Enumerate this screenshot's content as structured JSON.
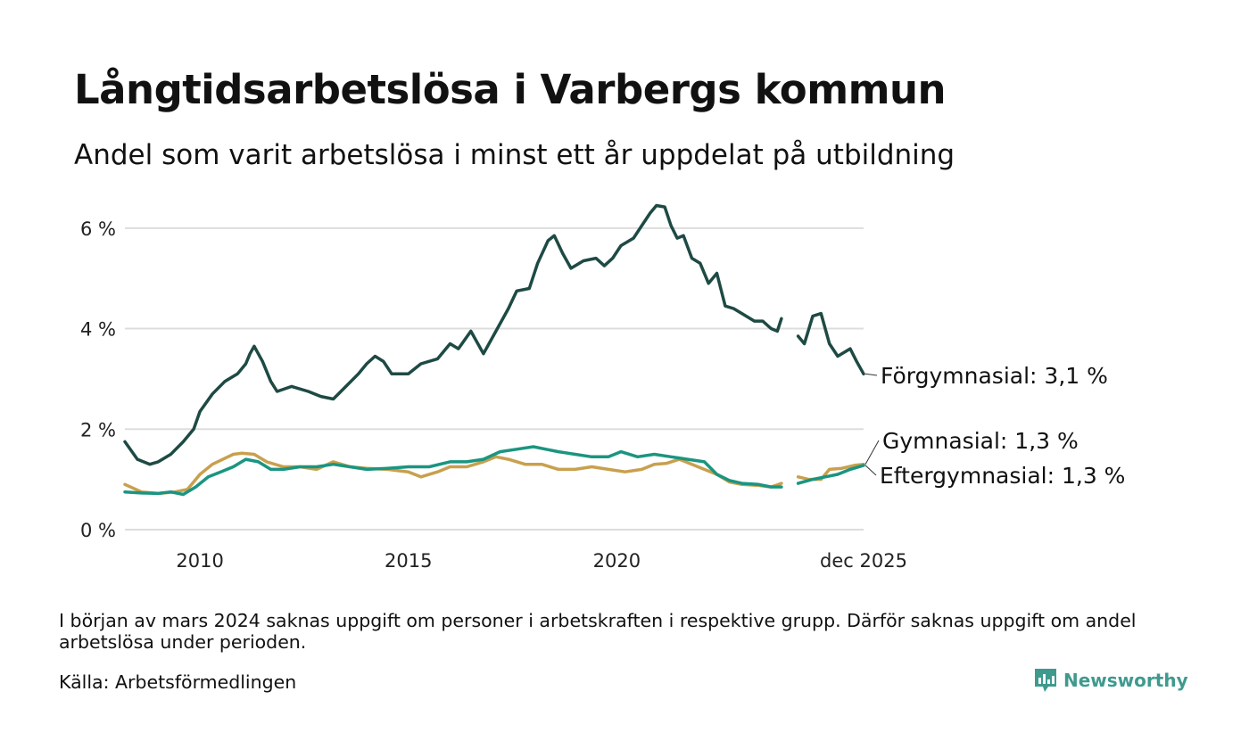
{
  "title": "Långtidsarbetslösa i Varbergs kommun",
  "subtitle": "Andel som varit arbetslösa i minst ett år uppdelat på utbildning",
  "footnote": "I början av mars 2024 saknas uppgift om personer i arbetskraften i respektive grupp. Därför saknas uppgift om andel arbetslösa under perioden.",
  "source": "Källa: Arbetsförmedlingen",
  "brand": "Newsworthy",
  "colors": {
    "forgymnasial": "#1e4a44",
    "gymnasial": "#c8a04e",
    "eftergymnasial": "#1a9580",
    "grid": "#dddddd",
    "logo": "#3f9a8e"
  },
  "chart_data": {
    "type": "line",
    "xlabel": "",
    "ylabel": "",
    "xlim": [
      2008.2,
      2025.92
    ],
    "ylim": [
      0,
      6.6
    ],
    "y_ticks": [
      0,
      2,
      4,
      6
    ],
    "y_tick_labels": [
      "0 %",
      "2 %",
      "4 %",
      "6 %"
    ],
    "x_ticks": [
      2010,
      2015,
      2020,
      2025.92
    ],
    "x_tick_labels": [
      "2010",
      "2015",
      "2020",
      "dec 2025"
    ],
    "gap": [
      2023.95,
      2024.35
    ],
    "series": [
      {
        "name": "Förgymnasial",
        "label": "Förgymnasial: 3,1 %",
        "color_key": "forgymnasial",
        "points": [
          [
            2008.2,
            1.75
          ],
          [
            2008.5,
            1.4
          ],
          [
            2008.8,
            1.3
          ],
          [
            2009.0,
            1.35
          ],
          [
            2009.3,
            1.5
          ],
          [
            2009.6,
            1.75
          ],
          [
            2009.85,
            2.0
          ],
          [
            2010.0,
            2.35
          ],
          [
            2010.3,
            2.7
          ],
          [
            2010.6,
            2.95
          ],
          [
            2010.9,
            3.1
          ],
          [
            2011.1,
            3.3
          ],
          [
            2011.2,
            3.5
          ],
          [
            2011.3,
            3.65
          ],
          [
            2011.5,
            3.35
          ],
          [
            2011.7,
            2.95
          ],
          [
            2011.85,
            2.75
          ],
          [
            2012.2,
            2.85
          ],
          [
            2012.6,
            2.75
          ],
          [
            2012.9,
            2.65
          ],
          [
            2013.2,
            2.6
          ],
          [
            2013.5,
            2.85
          ],
          [
            2013.8,
            3.1
          ],
          [
            2014.0,
            3.3
          ],
          [
            2014.2,
            3.45
          ],
          [
            2014.4,
            3.35
          ],
          [
            2014.6,
            3.1
          ],
          [
            2015.0,
            3.1
          ],
          [
            2015.3,
            3.3
          ],
          [
            2015.7,
            3.4
          ],
          [
            2016.0,
            3.7
          ],
          [
            2016.2,
            3.6
          ],
          [
            2016.5,
            3.95
          ],
          [
            2016.8,
            3.5
          ],
          [
            2017.1,
            3.95
          ],
          [
            2017.4,
            4.4
          ],
          [
            2017.6,
            4.75
          ],
          [
            2017.9,
            4.8
          ],
          [
            2018.1,
            5.3
          ],
          [
            2018.35,
            5.75
          ],
          [
            2018.5,
            5.85
          ],
          [
            2018.7,
            5.5
          ],
          [
            2018.9,
            5.2
          ],
          [
            2019.2,
            5.35
          ],
          [
            2019.5,
            5.4
          ],
          [
            2019.7,
            5.25
          ],
          [
            2019.9,
            5.4
          ],
          [
            2020.1,
            5.65
          ],
          [
            2020.4,
            5.8
          ],
          [
            2020.6,
            6.05
          ],
          [
            2020.8,
            6.3
          ],
          [
            2020.95,
            6.45
          ],
          [
            2021.15,
            6.42
          ],
          [
            2021.3,
            6.05
          ],
          [
            2021.45,
            5.8
          ],
          [
            2021.6,
            5.85
          ],
          [
            2021.8,
            5.4
          ],
          [
            2022.0,
            5.3
          ],
          [
            2022.2,
            4.9
          ],
          [
            2022.4,
            5.1
          ],
          [
            2022.6,
            4.45
          ],
          [
            2022.8,
            4.4
          ],
          [
            2023.0,
            4.3
          ],
          [
            2023.3,
            4.15
          ],
          [
            2023.5,
            4.15
          ],
          [
            2023.7,
            4.0
          ],
          [
            2023.85,
            3.95
          ],
          [
            2023.95,
            4.2
          ],
          [
            2024.35,
            3.85
          ],
          [
            2024.5,
            3.7
          ],
          [
            2024.7,
            4.25
          ],
          [
            2024.9,
            4.3
          ],
          [
            2025.1,
            3.7
          ],
          [
            2025.3,
            3.45
          ],
          [
            2025.5,
            3.55
          ],
          [
            2025.6,
            3.6
          ],
          [
            2025.75,
            3.35
          ],
          [
            2025.92,
            3.1
          ]
        ]
      },
      {
        "name": "Gymnasial",
        "label": "Gymnasial: 1,3 %",
        "color_key": "gymnasial",
        "points": [
          [
            2008.2,
            0.9
          ],
          [
            2008.6,
            0.75
          ],
          [
            2009.0,
            0.72
          ],
          [
            2009.4,
            0.75
          ],
          [
            2009.7,
            0.8
          ],
          [
            2010.0,
            1.1
          ],
          [
            2010.3,
            1.3
          ],
          [
            2010.55,
            1.4
          ],
          [
            2010.8,
            1.5
          ],
          [
            2011.0,
            1.52
          ],
          [
            2011.3,
            1.5
          ],
          [
            2011.6,
            1.35
          ],
          [
            2012.0,
            1.25
          ],
          [
            2012.4,
            1.25
          ],
          [
            2012.8,
            1.2
          ],
          [
            2013.2,
            1.35
          ],
          [
            2013.6,
            1.25
          ],
          [
            2014.0,
            1.22
          ],
          [
            2014.5,
            1.2
          ],
          [
            2015.0,
            1.15
          ],
          [
            2015.3,
            1.05
          ],
          [
            2015.7,
            1.15
          ],
          [
            2016.0,
            1.25
          ],
          [
            2016.4,
            1.25
          ],
          [
            2016.8,
            1.35
          ],
          [
            2017.1,
            1.45
          ],
          [
            2017.4,
            1.4
          ],
          [
            2017.8,
            1.3
          ],
          [
            2018.2,
            1.3
          ],
          [
            2018.6,
            1.2
          ],
          [
            2019.0,
            1.2
          ],
          [
            2019.4,
            1.25
          ],
          [
            2019.8,
            1.2
          ],
          [
            2020.2,
            1.15
          ],
          [
            2020.6,
            1.2
          ],
          [
            2020.9,
            1.3
          ],
          [
            2021.2,
            1.32
          ],
          [
            2021.5,
            1.4
          ],
          [
            2021.8,
            1.3
          ],
          [
            2022.1,
            1.2
          ],
          [
            2022.4,
            1.1
          ],
          [
            2022.7,
            0.95
          ],
          [
            2023.0,
            0.9
          ],
          [
            2023.4,
            0.88
          ],
          [
            2023.7,
            0.85
          ],
          [
            2023.95,
            0.92
          ],
          [
            2024.35,
            1.05
          ],
          [
            2024.6,
            1.0
          ],
          [
            2024.9,
            1.0
          ],
          [
            2025.1,
            1.2
          ],
          [
            2025.4,
            1.22
          ],
          [
            2025.7,
            1.28
          ],
          [
            2025.92,
            1.3
          ]
        ]
      },
      {
        "name": "Eftergymnasial",
        "label": "Eftergymnasial: 1,3 %",
        "color_key": "eftergymnasial",
        "points": [
          [
            2008.2,
            0.75
          ],
          [
            2008.6,
            0.73
          ],
          [
            2009.0,
            0.72
          ],
          [
            2009.3,
            0.75
          ],
          [
            2009.6,
            0.7
          ],
          [
            2009.9,
            0.85
          ],
          [
            2010.2,
            1.05
          ],
          [
            2010.5,
            1.15
          ],
          [
            2010.8,
            1.25
          ],
          [
            2011.1,
            1.4
          ],
          [
            2011.4,
            1.35
          ],
          [
            2011.7,
            1.2
          ],
          [
            2012.0,
            1.2
          ],
          [
            2012.4,
            1.25
          ],
          [
            2012.8,
            1.25
          ],
          [
            2013.2,
            1.3
          ],
          [
            2013.6,
            1.25
          ],
          [
            2014.0,
            1.2
          ],
          [
            2014.5,
            1.22
          ],
          [
            2015.0,
            1.25
          ],
          [
            2015.5,
            1.25
          ],
          [
            2016.0,
            1.35
          ],
          [
            2016.4,
            1.35
          ],
          [
            2016.8,
            1.4
          ],
          [
            2017.2,
            1.55
          ],
          [
            2017.6,
            1.6
          ],
          [
            2018.0,
            1.65
          ],
          [
            2018.3,
            1.6
          ],
          [
            2018.6,
            1.55
          ],
          [
            2019.0,
            1.5
          ],
          [
            2019.4,
            1.45
          ],
          [
            2019.8,
            1.45
          ],
          [
            2020.1,
            1.55
          ],
          [
            2020.5,
            1.45
          ],
          [
            2020.9,
            1.5
          ],
          [
            2021.3,
            1.45
          ],
          [
            2021.7,
            1.4
          ],
          [
            2022.1,
            1.35
          ],
          [
            2022.4,
            1.1
          ],
          [
            2022.7,
            0.98
          ],
          [
            2023.0,
            0.92
          ],
          [
            2023.4,
            0.9
          ],
          [
            2023.7,
            0.85
          ],
          [
            2023.95,
            0.85
          ],
          [
            2024.35,
            0.92
          ],
          [
            2024.7,
            1.0
          ],
          [
            2025.0,
            1.05
          ],
          [
            2025.3,
            1.1
          ],
          [
            2025.6,
            1.2
          ],
          [
            2025.92,
            1.28
          ]
        ]
      }
    ]
  }
}
